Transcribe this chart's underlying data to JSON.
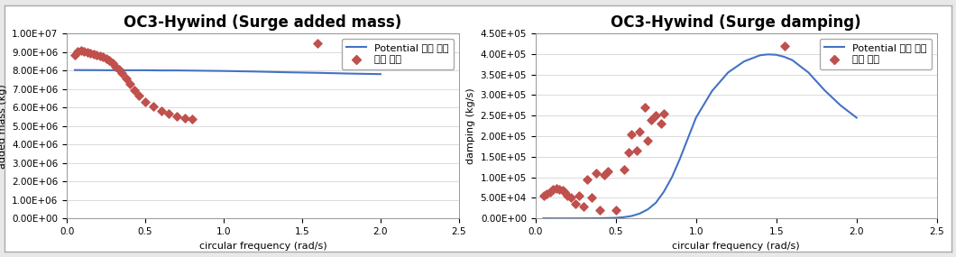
{
  "left_title": "OC3-Hywind (Surge added mass)",
  "right_title": "OC3-Hywind (Surge damping)",
  "xlabel": "circular frequency (rad/s)",
  "left_ylabel": "added mass (kg)",
  "right_ylabel": "damping (kg/s)",
  "legend_line": "Potential 해석 결과",
  "legend_dot": "실험 결과",
  "line_color": "#4472C4",
  "dot_color": "#C0504D",
  "xlim": [
    0,
    2.5
  ],
  "left_ylim": [
    0,
    10000000.0
  ],
  "right_ylim": [
    0,
    450000.0
  ],
  "left_yticks": [
    0,
    1000000.0,
    2000000.0,
    3000000.0,
    4000000.0,
    5000000.0,
    6000000.0,
    7000000.0,
    8000000.0,
    9000000.0,
    10000000.0
  ],
  "right_yticks": [
    0,
    50000.0,
    100000.0,
    150000.0,
    200000.0,
    250000.0,
    300000.0,
    350000.0,
    400000.0,
    450000.0
  ],
  "xticks": [
    0,
    0.5,
    1,
    1.5,
    2,
    2.5
  ],
  "left_line_x": [
    0.05,
    0.3,
    0.5,
    0.6,
    0.7,
    0.8,
    0.9,
    1.0,
    1.2,
    1.4,
    1.6,
    1.8,
    2.0
  ],
  "left_line_y": [
    8020000.0,
    8010000.0,
    8010000.0,
    8000000.0,
    8000000.0,
    7990000.0,
    7980000.0,
    7970000.0,
    7940000.0,
    7900000.0,
    7870000.0,
    7830000.0,
    7800000.0
  ],
  "left_scatter_x": [
    0.05,
    0.07,
    0.09,
    0.11,
    0.13,
    0.15,
    0.17,
    0.19,
    0.21,
    0.23,
    0.25,
    0.27,
    0.29,
    0.31,
    0.33,
    0.35,
    0.38,
    0.4,
    0.43,
    0.46,
    0.5,
    0.55,
    0.6,
    0.65,
    0.7,
    0.75,
    0.8,
    1.6
  ],
  "left_scatter_y": [
    8850000.0,
    9050000.0,
    9100000.0,
    9050000.0,
    9000000.0,
    8950000.0,
    8900000.0,
    8850000.0,
    8800000.0,
    8720000.0,
    8620000.0,
    8520000.0,
    8380000.0,
    8220000.0,
    8050000.0,
    7850000.0,
    7550000.0,
    7250000.0,
    6950000.0,
    6650000.0,
    6300000.0,
    6050000.0,
    5820000.0,
    5650000.0,
    5520000.0,
    5420000.0,
    5370000.0,
    9450000.0
  ],
  "right_line_x": [
    0.05,
    0.15,
    0.3,
    0.4,
    0.5,
    0.55,
    0.6,
    0.65,
    0.7,
    0.75,
    0.8,
    0.85,
    0.9,
    1.0,
    1.1,
    1.2,
    1.3,
    1.4,
    1.45,
    1.5,
    1.55,
    1.6,
    1.7,
    1.8,
    1.9,
    2.0
  ],
  "right_line_y": [
    200,
    100,
    200,
    500,
    1500,
    3000,
    6000,
    12000.0,
    22000.0,
    38000.0,
    65000.0,
    100000.0,
    145000.0,
    245000.0,
    310000.0,
    355000.0,
    382000.0,
    397000.0,
    399000.0,
    398000.0,
    393000.0,
    385000.0,
    355000.0,
    312000.0,
    275000.0,
    245000.0
  ],
  "right_scatter_x": [
    0.05,
    0.07,
    0.09,
    0.11,
    0.13,
    0.15,
    0.17,
    0.18,
    0.2,
    0.22,
    0.25,
    0.27,
    0.3,
    0.32,
    0.35,
    0.38,
    0.4,
    0.43,
    0.45,
    0.5,
    0.55,
    0.58,
    0.6,
    0.63,
    0.65,
    0.68,
    0.7,
    0.72,
    0.75,
    0.78,
    0.8,
    1.55
  ],
  "right_scatter_y": [
    55000.0,
    60000.0,
    65000.0,
    70000.0,
    72000.0,
    70000.0,
    68000.0,
    65000.0,
    55000.0,
    50000.0,
    35000.0,
    55000.0,
    30000.0,
    95000.0,
    50000.0,
    110000.0,
    20000.0,
    105000.0,
    115000.0,
    20000.0,
    120000.0,
    160000.0,
    205000.0,
    165000.0,
    210000.0,
    270000.0,
    190000.0,
    240000.0,
    250000.0,
    230000.0,
    255000.0,
    420000.0
  ],
  "bg_color": "#FFFFFF",
  "outer_bg": "#F2F2F2",
  "title_fontsize": 12,
  "label_fontsize": 8,
  "tick_fontsize": 7.5,
  "legend_fontsize": 8
}
